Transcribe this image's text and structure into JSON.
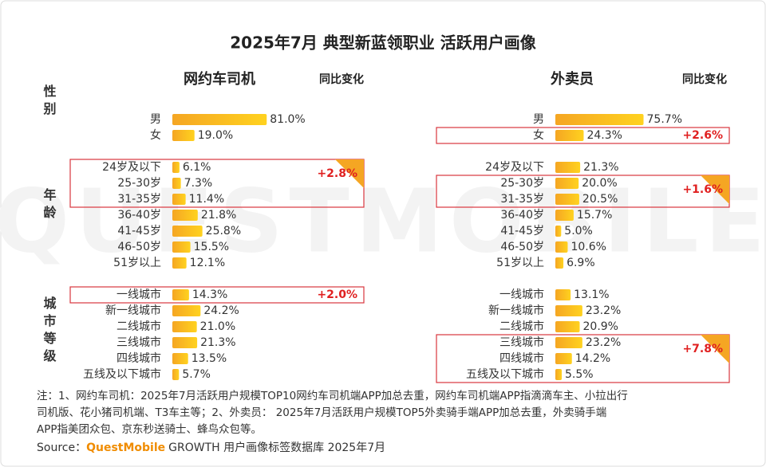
{
  "title": "2025年7月 典型新蓝领职业 活跃用户画像",
  "watermark": "QUESTMOBILE",
  "row_groups": [
    "性别",
    "年龄",
    "城市等级"
  ],
  "chart_data": [
    {
      "type": "bar",
      "title": "网约车司机",
      "change_header": "同比变化",
      "color": "#f5a623",
      "xlim": [
        0,
        100
      ],
      "groups": [
        {
          "categories": [
            "男",
            "女"
          ],
          "values": [
            81.0,
            19.0
          ],
          "value_labels": [
            "81.0%",
            "19.0%"
          ]
        },
        {
          "categories": [
            "24岁及以下",
            "25-30岁",
            "31-35岁",
            "36-40岁",
            "41-45岁",
            "46-50岁",
            "51岁以上"
          ],
          "values": [
            6.1,
            7.3,
            11.4,
            21.8,
            25.8,
            15.5,
            12.1
          ],
          "value_labels": [
            "6.1%",
            "7.3%",
            "11.4%",
            "21.8%",
            "25.8%",
            "15.5%",
            "12.1%"
          ]
        },
        {
          "categories": [
            "一线城市",
            "新一线城市",
            "二线城市",
            "三线城市",
            "四线城市",
            "五线及以下城市"
          ],
          "values": [
            14.3,
            24.2,
            21.0,
            21.3,
            13.5,
            5.7
          ],
          "value_labels": [
            "14.3%",
            "24.2%",
            "21.0%",
            "21.3%",
            "13.5%",
            "5.7%"
          ]
        }
      ],
      "highlights": [
        {
          "group": 1,
          "rows": [
            0,
            2
          ],
          "label": "+2.8%",
          "corner": true
        },
        {
          "group": 2,
          "rows": [
            0,
            0
          ],
          "label": "+2.0%",
          "corner": false
        }
      ]
    },
    {
      "type": "bar",
      "title": "外卖员",
      "change_header": "同比变化",
      "color": "#f5a623",
      "xlim": [
        0,
        100
      ],
      "groups": [
        {
          "categories": [
            "男",
            "女"
          ],
          "values": [
            75.7,
            24.3
          ],
          "value_labels": [
            "75.7%",
            "24.3%"
          ]
        },
        {
          "categories": [
            "24岁及以下",
            "25-30岁",
            "31-35岁",
            "36-40岁",
            "41-45岁",
            "46-50岁",
            "51岁以上"
          ],
          "values": [
            21.3,
            20.0,
            20.5,
            15.7,
            5.0,
            10.6,
            6.9
          ],
          "value_labels": [
            "21.3%",
            "20.0%",
            "20.5%",
            "15.7%",
            "5.0%",
            "10.6%",
            "6.9%"
          ]
        },
        {
          "categories": [
            "一线城市",
            "新一线城市",
            "二线城市",
            "三线城市",
            "四线城市",
            "五线及以下城市"
          ],
          "values": [
            13.1,
            23.2,
            20.9,
            23.2,
            14.2,
            5.5
          ],
          "value_labels": [
            "13.1%",
            "23.2%",
            "20.9%",
            "23.2%",
            "14.2%",
            "5.5%"
          ]
        }
      ],
      "highlights": [
        {
          "group": 0,
          "rows": [
            1,
            1
          ],
          "label": "+2.6%",
          "corner": false
        },
        {
          "group": 1,
          "rows": [
            1,
            2
          ],
          "label": "+1.6%",
          "corner": true
        },
        {
          "group": 2,
          "rows": [
            3,
            5
          ],
          "label": "+7.8%",
          "corner": true
        }
      ]
    }
  ],
  "notes": [
    "注：1、网约车司机：2025年7月活跃用户规模TOP10网约车司机端APP加总去重，网约车司机端APP指滴滴车主、小拉出行",
    "司机版、花小猪司机端、T3车主等；2、外卖员：  2025年7月活跃用户规模TOP5外卖骑手端APP加总去重，外卖骑手端",
    "APP指美团众包、京东秒送骑士、蜂鸟众包等。"
  ],
  "source": {
    "prefix": "Source：",
    "brand": "QuestMobile",
    "text": "GROWTH 用户画像标签数据库 2025年7月"
  }
}
